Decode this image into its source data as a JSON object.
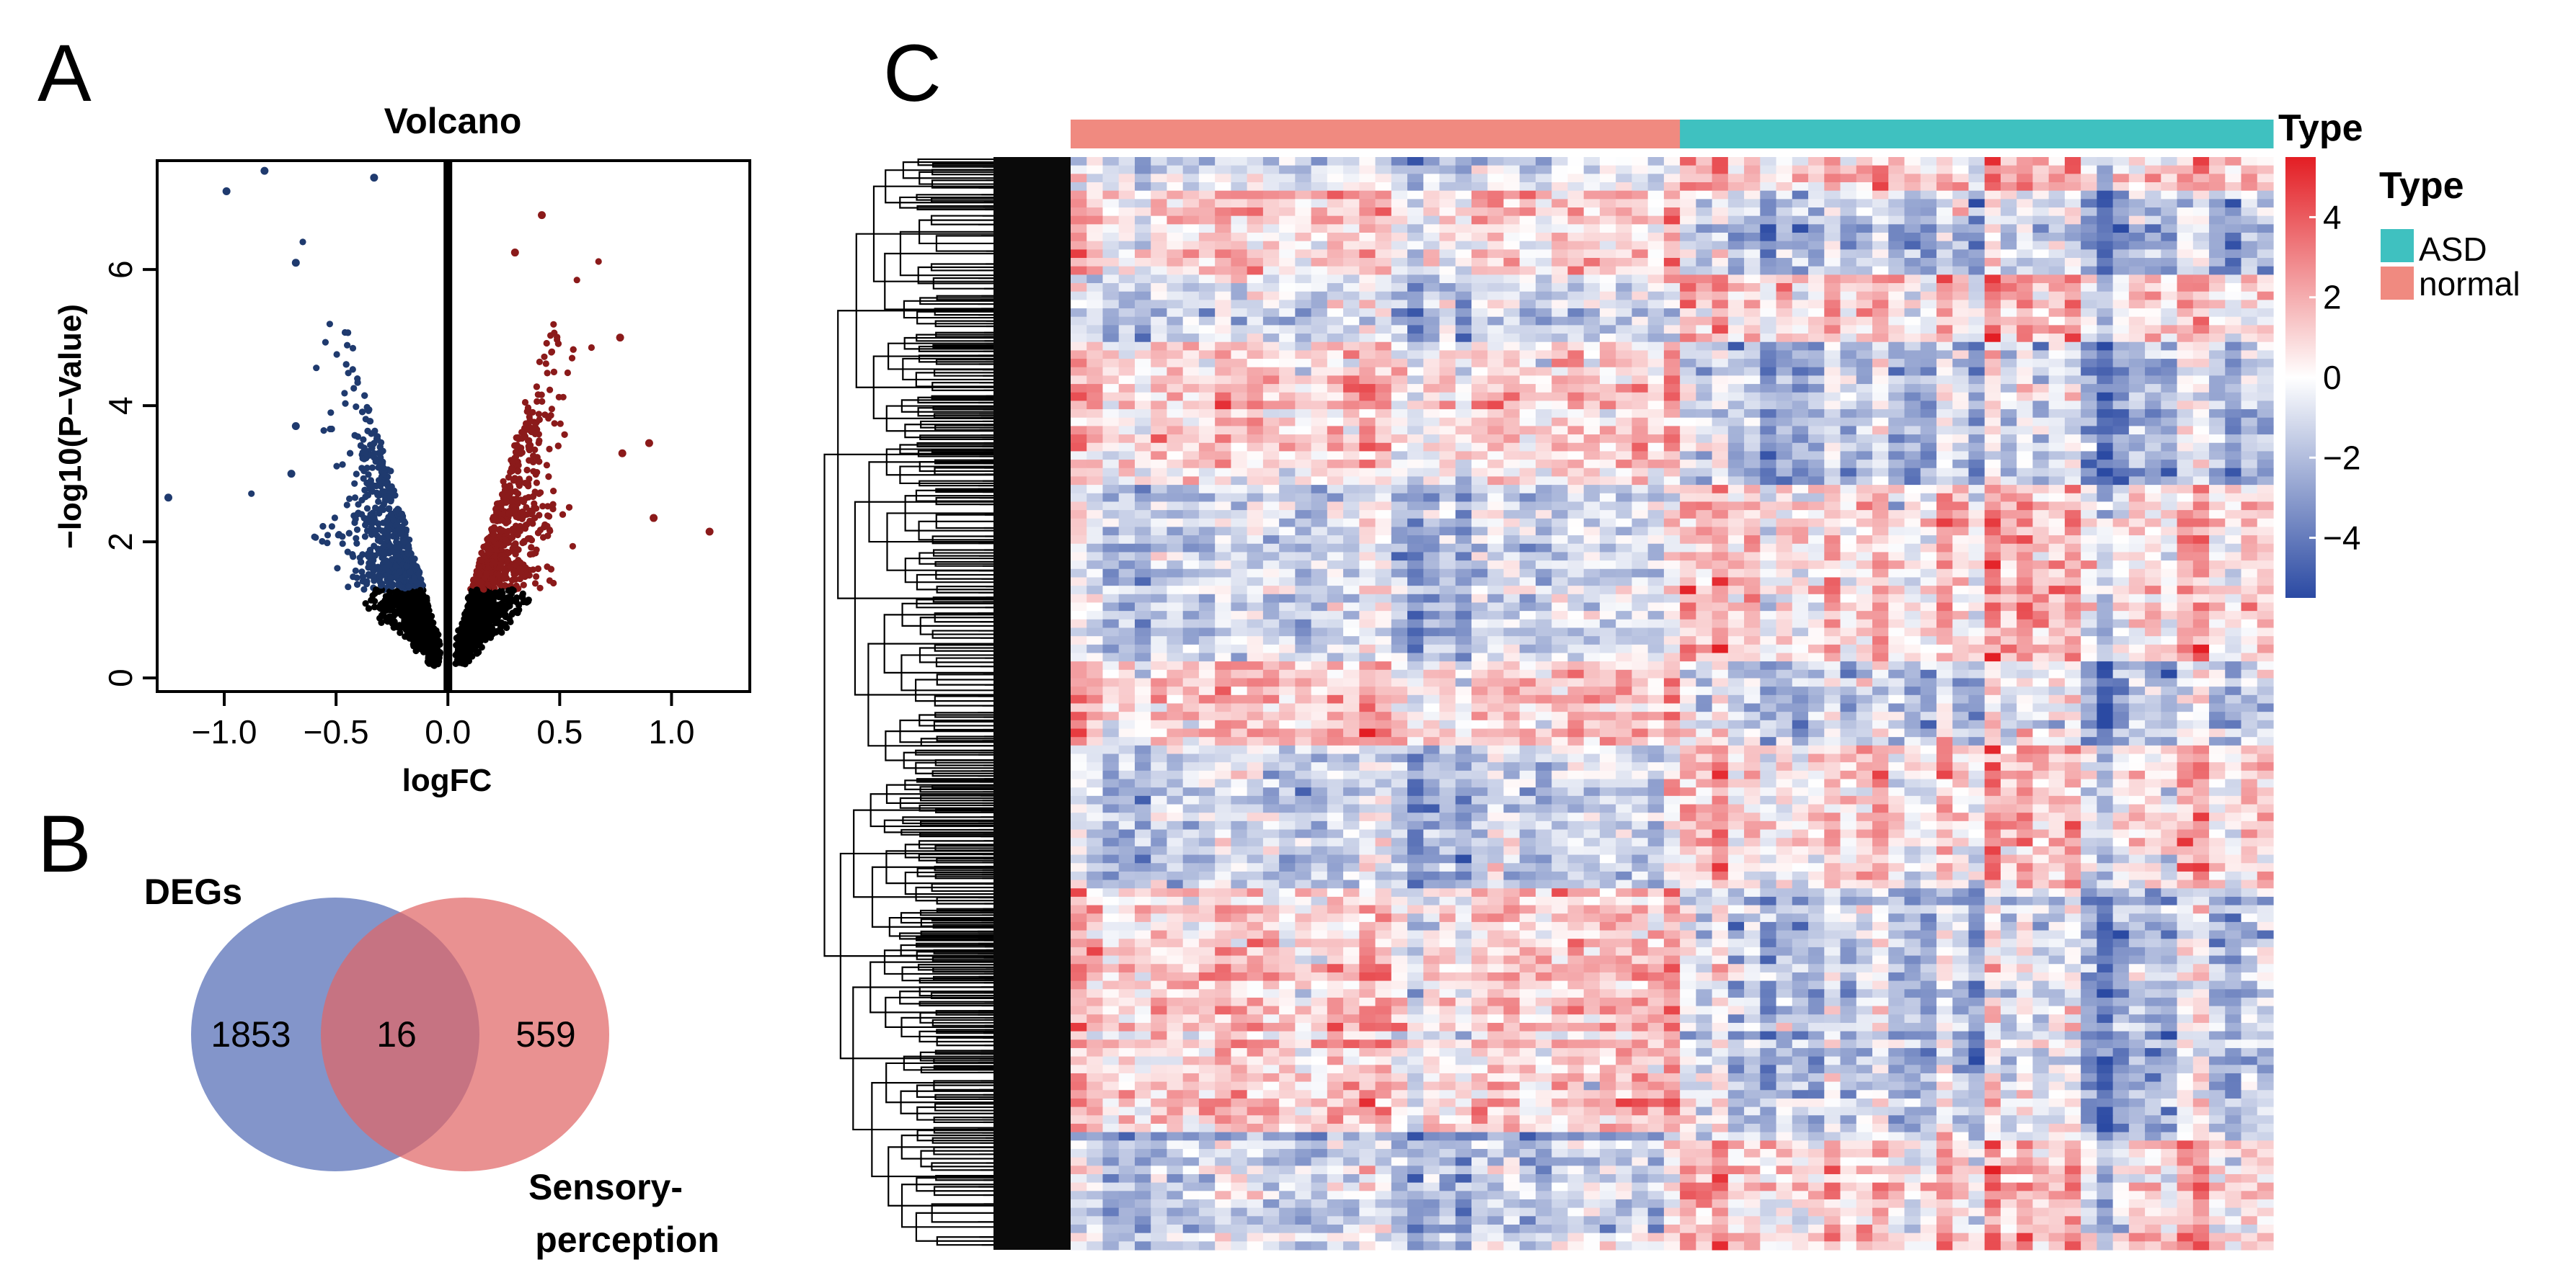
{
  "panels": {
    "a_label": "A",
    "b_label": "B",
    "c_label": "C"
  },
  "chart_data": [
    {
      "type": "scatter",
      "panel": "A",
      "title": "Volcano",
      "xlabel": "logFC",
      "ylabel": "−log10(P−Value)",
      "xlim": [
        -1.3,
        1.35
      ],
      "ylim": [
        -0.2,
        7.6
      ],
      "x_ticks": [
        -1.0,
        -0.5,
        0.0,
        0.5,
        1.0
      ],
      "x_tick_labels": [
        "−1.0",
        "−0.5",
        "0.0",
        "0.5",
        "1.0"
      ],
      "y_ticks": [
        0,
        2,
        4,
        6
      ],
      "y_tick_labels": [
        "0",
        "2",
        "4",
        "6"
      ],
      "significance_threshold_neglog10p": 1.3,
      "colors": {
        "down": "#1f3a6e",
        "up": "#8b1a1a",
        "ns": "#000000",
        "zero_line": "#000000"
      },
      "groups": [
        "down",
        "up",
        "not significant"
      ],
      "outliers": [
        {
          "x": -0.82,
          "y": 7.45,
          "group": "down"
        },
        {
          "x": -0.99,
          "y": 7.15,
          "group": "down"
        },
        {
          "x": -0.33,
          "y": 7.35,
          "group": "down"
        },
        {
          "x": -1.25,
          "y": 2.65,
          "group": "down"
        },
        {
          "x": -0.68,
          "y": 3.7,
          "group": "down"
        },
        {
          "x": -0.7,
          "y": 3.0,
          "group": "down"
        },
        {
          "x": -0.68,
          "y": 6.1,
          "group": "down"
        },
        {
          "x": 0.42,
          "y": 6.8,
          "group": "up"
        },
        {
          "x": 0.3,
          "y": 6.25,
          "group": "up"
        },
        {
          "x": 0.77,
          "y": 5.0,
          "group": "up"
        },
        {
          "x": 0.9,
          "y": 3.45,
          "group": "up"
        },
        {
          "x": 1.17,
          "y": 2.15,
          "group": "up"
        },
        {
          "x": 0.92,
          "y": 2.35,
          "group": "up"
        },
        {
          "x": 0.78,
          "y": 3.3,
          "group": "up"
        }
      ]
    },
    {
      "type": "venn",
      "panel": "B",
      "sets": [
        "DEGs",
        "Sensory-perception"
      ],
      "set_label_left": "DEGs",
      "set_label_right_line1": "Sensory-",
      "set_label_right_line2": "perception",
      "only_left": "1853",
      "intersection": "16",
      "only_right": "559",
      "colors": {
        "left": "#5a72b8",
        "right": "#e06666"
      }
    },
    {
      "type": "heatmap",
      "panel": "C",
      "annotation_title": "Type",
      "groups": [
        {
          "name": "normal",
          "color": "#f08a80",
          "columns": 38
        },
        {
          "name": "ASD",
          "color": "#3fc1c0",
          "columns": 37
        }
      ],
      "legend_title": "Type",
      "legend_items": [
        {
          "label": "ASD",
          "color": "#3fc1c0"
        },
        {
          "label": "normal",
          "color": "#f08a80"
        }
      ],
      "color_scale": {
        "min": -5.5,
        "max": 5.5,
        "low": "#2b4aa3",
        "mid": "#ffffff",
        "high": "#e31e24",
        "ticks": [
          4,
          2,
          0,
          -2,
          -4
        ],
        "tick_labels": [
          "4",
          "2",
          "0",
          "−2",
          "−4"
        ]
      },
      "row_count": 1869,
      "row_dendrogram": true
    }
  ]
}
